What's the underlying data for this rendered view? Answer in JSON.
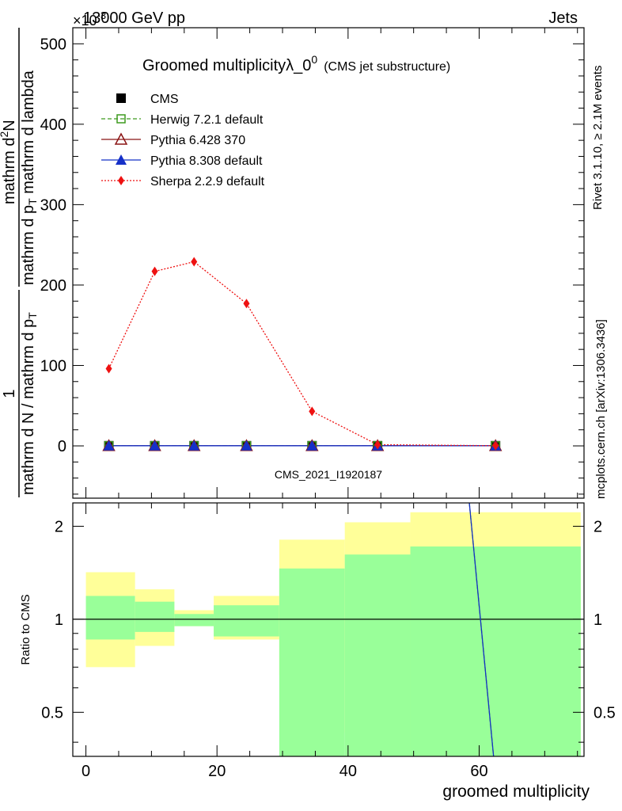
{
  "header": {
    "left": "13000 GeV pp",
    "right": "Jets",
    "exponent_label": "×10",
    "exponent_power": "-3"
  },
  "side": {
    "rivet": "Rivet 3.1.10, ≥ 2.1M events",
    "mcplots": "mcplots.cern.ch [arXiv:1306.3436]"
  },
  "chart_data": [
    {
      "type": "line",
      "title": "Groomed multiplicityλ_0",
      "title_sup": "0",
      "title_suffix": "(CMS jet substructure)",
      "ylabel_numer": "mathrm d",
      "ylabel_numer_sup": "2",
      "ylabel_numer_N": "N",
      "ylabel_denom": "mathrm d p",
      "ylabel_denom_sub": "T",
      "ylabel_denom_rest": " mathrm d lambda",
      "ylabel_prefix_num": "1",
      "ylabel_prefix_den": "mathrm d N / mathrm d p",
      "ylabel_prefix_sub": "T",
      "yticks": [
        0,
        100,
        200,
        300,
        400,
        500
      ],
      "ylim": [
        -65,
        520
      ],
      "xlim": [
        -2,
        76
      ],
      "watermark": "CMS_2021_I1920187",
      "x": [
        3.5,
        10.5,
        16.5,
        24.5,
        34.5,
        44.5,
        62.5
      ],
      "series": [
        {
          "name": "CMS",
          "color": "#000000",
          "marker": "filled-square",
          "line": "none",
          "values": [
            0.2,
            0.2,
            0.2,
            0.2,
            0.2,
            0.2,
            0.2
          ]
        },
        {
          "name": "Herwig 7.2.1 default",
          "color": "#3d9a1e",
          "marker": "open-square",
          "line": "dashed",
          "values": [
            0.2,
            0.2,
            0.2,
            0.2,
            0.2,
            0.2,
            0.2
          ]
        },
        {
          "name": "Pythia 6.428 370",
          "color": "#8b1414",
          "marker": "open-triangle",
          "line": "solid",
          "values": [
            0.2,
            0.2,
            0.2,
            0.2,
            0.2,
            0.2,
            0.2
          ]
        },
        {
          "name": "Pythia 8.308 default",
          "color": "#1530c8",
          "marker": "filled-triangle",
          "line": "solid",
          "values": [
            0.2,
            0.2,
            0.2,
            0.2,
            0.2,
            0.2,
            0.2
          ]
        },
        {
          "name": "Sherpa 2.2.9 default",
          "color": "#ee1111",
          "marker": "filled-diamond",
          "line": "dotted",
          "values": [
            96,
            217,
            229,
            177,
            43,
            1.5,
            0.2
          ]
        }
      ]
    },
    {
      "type": "area",
      "ylabel": "Ratio to CMS",
      "xlabel": "groomed multiplicity",
      "yscale": "log",
      "ylim": [
        0.36,
        2.38
      ],
      "yticks": [
        0.5,
        1,
        2
      ],
      "ytick_labels": [
        "0.5",
        "1",
        "2"
      ],
      "xticks": [
        0,
        20,
        40,
        60
      ],
      "xlim": [
        -2,
        76
      ],
      "colors": {
        "stat_band": "#99ff99",
        "total_band": "#ffff99",
        "unity": "#000000",
        "line": "#1530c8"
      },
      "bins": [
        {
          "x0": 0,
          "x1": 7.5,
          "inner": [
            0.86,
            1.19
          ],
          "outer": [
            0.7,
            1.42
          ]
        },
        {
          "x0": 7.5,
          "x1": 13.5,
          "inner": [
            0.91,
            1.14
          ],
          "outer": [
            0.82,
            1.25
          ]
        },
        {
          "x0": 13.5,
          "x1": 19.5,
          "inner": [
            0.95,
            1.04
          ],
          "outer": [
            0.95,
            1.07
          ]
        },
        {
          "x0": 19.5,
          "x1": 29.5,
          "inner": [
            0.88,
            1.11
          ],
          "outer": [
            0.86,
            1.19
          ]
        },
        {
          "x0": 29.5,
          "x1": 39.5,
          "inner": [
            0.3,
            1.46
          ],
          "outer": [
            0.66,
            1.81
          ]
        },
        {
          "x0": 39.5,
          "x1": 49.5,
          "inner": [
            0.3,
            1.62
          ],
          "outer": [
            0.43,
            2.06
          ]
        },
        {
          "x0": 49.5,
          "x1": 75.5,
          "inner": [
            0.3,
            1.72
          ],
          "outer": [
            0.3,
            2.22
          ]
        }
      ],
      "steep_line": {
        "from": [
          58.5,
          2.38
        ],
        "to": [
          62.2,
          0.36
        ]
      }
    }
  ]
}
